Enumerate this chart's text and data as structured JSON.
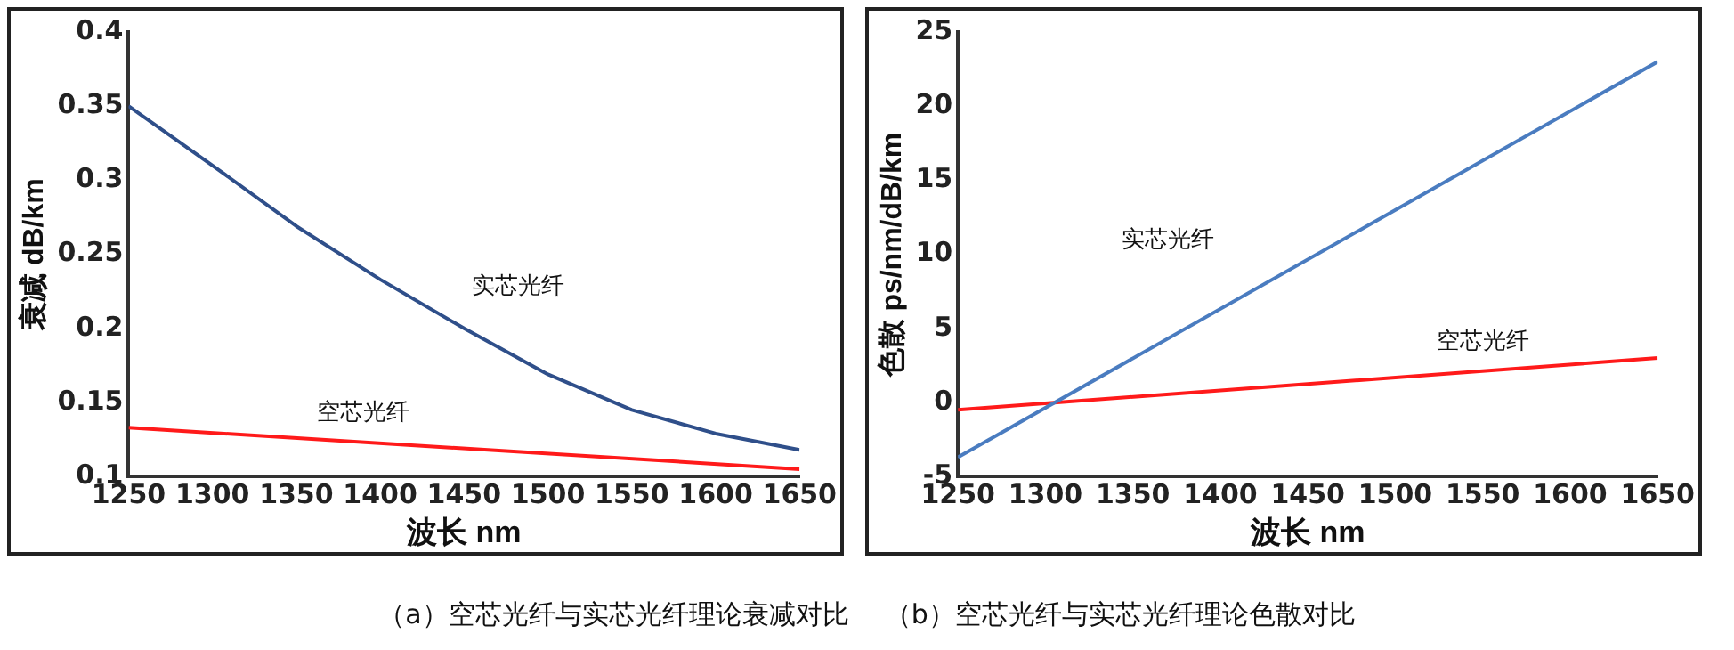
{
  "chart_data": [
    {
      "type": "line",
      "xlabel": "波长 nm",
      "ylabel": "衰减 dB/km",
      "x": [
        1250,
        1300,
        1350,
        1400,
        1450,
        1500,
        1550,
        1600,
        1650
      ],
      "series": [
        {
          "name": "实芯光纤",
          "color": "#2f4f8a",
          "values": [
            0.35,
            0.31,
            0.269,
            0.233,
            0.2,
            0.169,
            0.145,
            0.129,
            0.118
          ]
        },
        {
          "name": "空芯光纤",
          "color": "#ff1a1a",
          "x": [
            1250,
            1650
          ],
          "values": [
            0.133,
            0.105
          ]
        }
      ],
      "xlim": [
        1250,
        1650
      ],
      "xticks": [
        1250,
        1300,
        1350,
        1400,
        1450,
        1500,
        1550,
        1600,
        1650
      ],
      "ylim": [
        0.1,
        0.4
      ],
      "yticks": [
        0.1,
        0.15,
        0.2,
        0.25,
        0.3,
        0.35,
        0.4
      ],
      "grid": false,
      "legend": false,
      "marker": "none",
      "line_style": "solid",
      "annotations": [
        "（a）空芯光纤与实芯光纤理论衰减对比"
      ]
    },
    {
      "type": "line",
      "xlabel": "波长 nm",
      "ylabel": "色散 ps/nm/dB/km",
      "x": [
        1250,
        1650
      ],
      "series": [
        {
          "name": "实芯光纤",
          "color": "#4a7cc0",
          "values": [
            -3.7,
            23
          ]
        },
        {
          "name": "空芯光纤",
          "color": "#ff1a1a",
          "values": [
            -0.5,
            3
          ]
        }
      ],
      "xlim": [
        1250,
        1650
      ],
      "xticks": [
        1250,
        1300,
        1350,
        1400,
        1450,
        1500,
        1550,
        1600,
        1650
      ],
      "ylim": [
        -5,
        25
      ],
      "yticks": [
        -5,
        0,
        5,
        10,
        15,
        20,
        25
      ],
      "grid": false,
      "legend": false,
      "marker": "none",
      "line_style": "solid",
      "annotations": [
        "（b）空芯光纤与实芯光纤理论色散对比"
      ]
    }
  ]
}
